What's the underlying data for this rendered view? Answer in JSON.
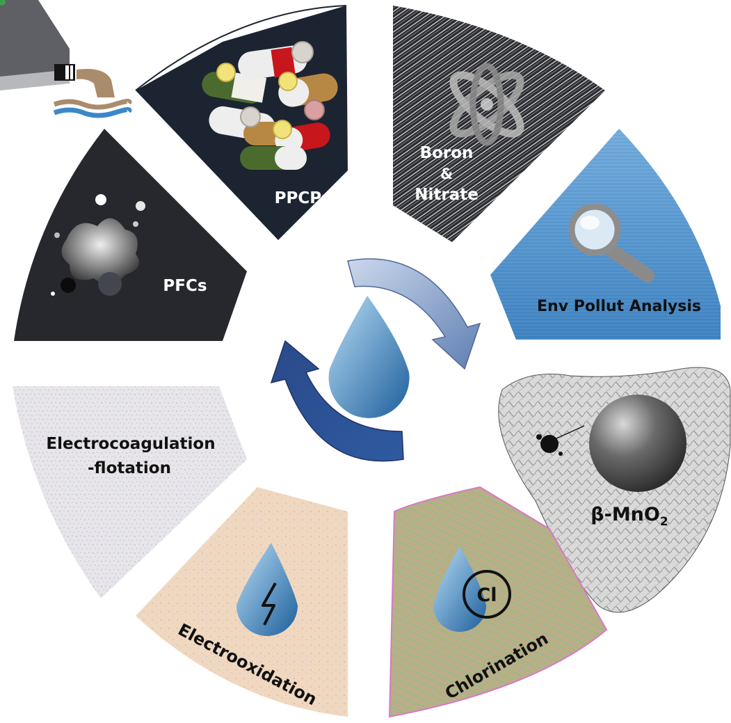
{
  "segments": {
    "ppcps": {
      "label": "PPCPs"
    },
    "boron_nitrate": {
      "line1": "Boron",
      "line2": "&",
      "line3": "Nitrate"
    },
    "env_pollut": {
      "label": "Env Pollut Analysis"
    },
    "mno2": {
      "label": "β-MnO",
      "subscript": "2"
    },
    "chlorination": {
      "label": "Chlorination",
      "symbol": "Cl"
    },
    "electrooxidation": {
      "label": "Electrooxidation"
    },
    "electrocoag": {
      "line1": "Electrocoagulation",
      "line2": "-flotation"
    },
    "pfcs": {
      "label": "PFCs"
    }
  },
  "colors": {
    "dark_navy": "#1c2431",
    "dark_gray": "#26282e",
    "blue": "#3f86c6",
    "arrow_light": "#7f97bf",
    "arrow_dark": "#2a4a8a",
    "drop_light": "#9fcdee",
    "drop_dark": "#1f6aa8",
    "tan": "#f0d9bf",
    "olive": "#b9b38a"
  },
  "icons": [
    "water-drop-icon",
    "cycle-arrows-icon",
    "pills-icon",
    "atom-icon",
    "magnifier-icon",
    "sphere-icon",
    "lightning-drop-icon",
    "chlorine-drop-icon",
    "ink-splash-icon",
    "sewage-pipe-icon"
  ]
}
